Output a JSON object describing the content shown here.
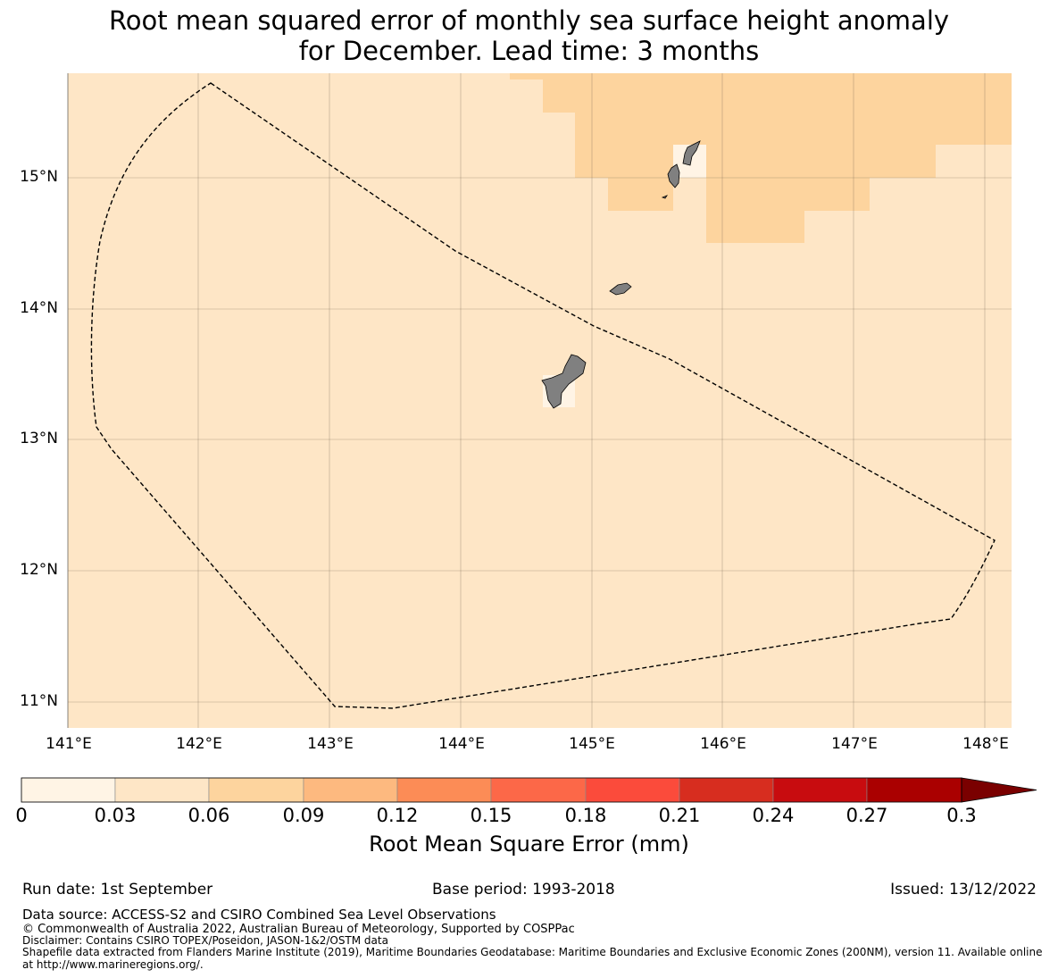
{
  "title": {
    "line1": "Root mean squared error of monthly sea surface height anomaly",
    "line2": "for December. Lead time: 3 months"
  },
  "map": {
    "latitude_labels": [
      "15°N",
      "14°N",
      "13°N",
      "12°N",
      "11°N"
    ],
    "longitude_labels": [
      "141°E",
      "142°E",
      "143°E",
      "144°E",
      "145°E",
      "146°E",
      "147°E",
      "148°E"
    ],
    "colors": {
      "background_bin": "#fee6c6",
      "upper_bin": "#fdd49e",
      "lowest_bin": "#fff4e5",
      "land": "#808080",
      "boundary": "#000000"
    }
  },
  "colorbar": {
    "label": "Root Mean Square Error (mm)",
    "ticks": [
      "0",
      "0.03",
      "0.06",
      "0.09",
      "0.12",
      "0.15",
      "0.18",
      "0.21",
      "0.24",
      "0.27",
      "0.3"
    ],
    "bin_colors": [
      "#fff4e5",
      "#fee6c6",
      "#fdd49e",
      "#fdb97f",
      "#fc8c56",
      "#fc6848",
      "#fb4b3b",
      "#d72d1f",
      "#c80c0f",
      "#aa0000",
      "#7a0000"
    ]
  },
  "footer": {
    "run_date": "Run date: 1st September",
    "base_period": "Base period: 1993-2018",
    "issued": "Issued: 13/12/2022",
    "data_source": "Data source: ACCESS-S2 and CSIRO Combined Sea Level Observations",
    "copyright": "© Commonwealth of Australia 2022, Australian Bureau of Meteorology, Supported by COSPPac",
    "disclaimer": "Disclaimer: Contains CSIRO TOPEX/Poseidon, JASON-1&2/OSTM data",
    "shapefile1": "Shapefile data extracted from Flanders Marine Institute (2019), Maritime Boundaries Geodatabase: Maritime Boundaries and Exclusive Economic Zones (200NM), version 11. Available online",
    "shapefile2": "at http://www.marineregions.org/."
  }
}
